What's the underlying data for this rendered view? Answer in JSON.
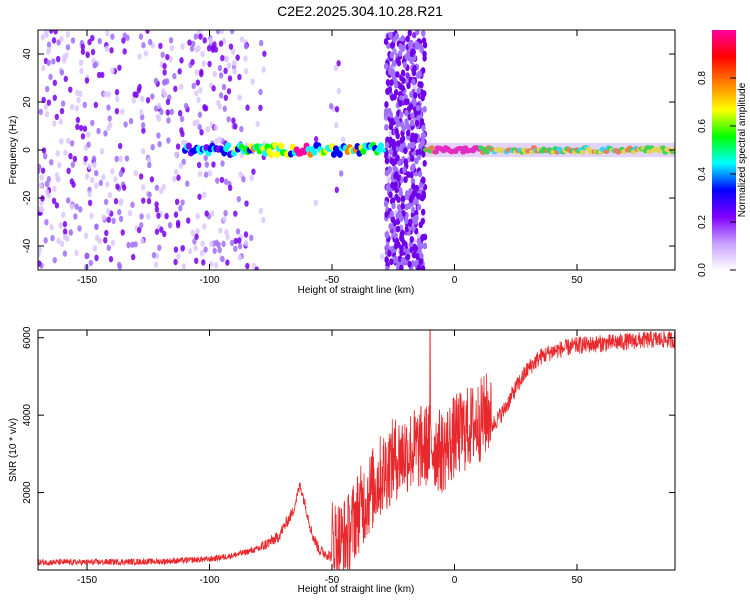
{
  "title": "C2E2.2025.304.10.28.R21",
  "chart_data": [
    {
      "type": "heatmap",
      "name": "spectrogram",
      "title": "C2E2.2025.304.10.28.R21",
      "xlabel": "Height of straight line (km)",
      "ylabel": "Frequency (Hz)",
      "xlim": [
        -170,
        90
      ],
      "ylim": [
        -50,
        50
      ],
      "xticks": [
        -150,
        -100,
        -50,
        0,
        50
      ],
      "yticks": [
        -40,
        -20,
        0,
        20,
        40
      ],
      "colorbar": {
        "label": "Normalized spectral amplitude",
        "range": [
          0,
          1
        ],
        "ticks": [
          0.0,
          0.2,
          0.4,
          0.6,
          0.8
        ],
        "colors": [
          "#ffffff",
          "#c8a0ff",
          "#8000ff",
          "#0000ff",
          "#00ffff",
          "#00ff00",
          "#ffff00",
          "#ff8000",
          "#ff0000",
          "#ff00a0"
        ]
      },
      "features": {
        "carrier_frequency_hz": 0,
        "noise_region_km": [
          -170,
          -85
        ],
        "dropout_gaps_km": [
          [
            -77,
            -57
          ],
          [
            -45,
            -30
          ],
          [
            -12,
            90
          ]
        ],
        "interference_band_km": [
          -28,
          -12
        ],
        "strong_carrier_segments_km": [
          [
            -65,
            -60
          ],
          [
            -8,
            10
          ]
        ]
      }
    },
    {
      "type": "line",
      "name": "snr",
      "xlabel": "Height of straight line (km)",
      "ylabel": "SNR (10 * v/v)",
      "xlim": [
        -170,
        90
      ],
      "ylim": [
        0,
        6200
      ],
      "xticks": [
        -150,
        -100,
        -50,
        0,
        50
      ],
      "yticks": [
        2000,
        4000,
        6000
      ],
      "color": "#e8282c",
      "series": [
        {
          "name": "SNR",
          "x": [
            -170,
            -150,
            -120,
            -100,
            -90,
            -80,
            -72,
            -66,
            -63,
            -61,
            -58,
            -55,
            -50,
            -46,
            -43,
            -40,
            -35,
            -30,
            -25,
            -20,
            -15,
            -10,
            -5,
            0,
            5,
            10,
            15,
            20,
            25,
            30,
            35,
            40,
            50,
            60,
            70,
            80,
            90
          ],
          "values": [
            200,
            200,
            220,
            280,
            380,
            550,
            850,
            1500,
            2200,
            1700,
            900,
            500,
            350,
            300,
            500,
            1000,
            1500,
            2000,
            2400,
            2600,
            2700,
            2800,
            2600,
            3000,
            3200,
            3400,
            3700,
            4100,
            4700,
            5200,
            5500,
            5650,
            5800,
            5850,
            5900,
            5950,
            5950
          ]
        }
      ]
    }
  ]
}
